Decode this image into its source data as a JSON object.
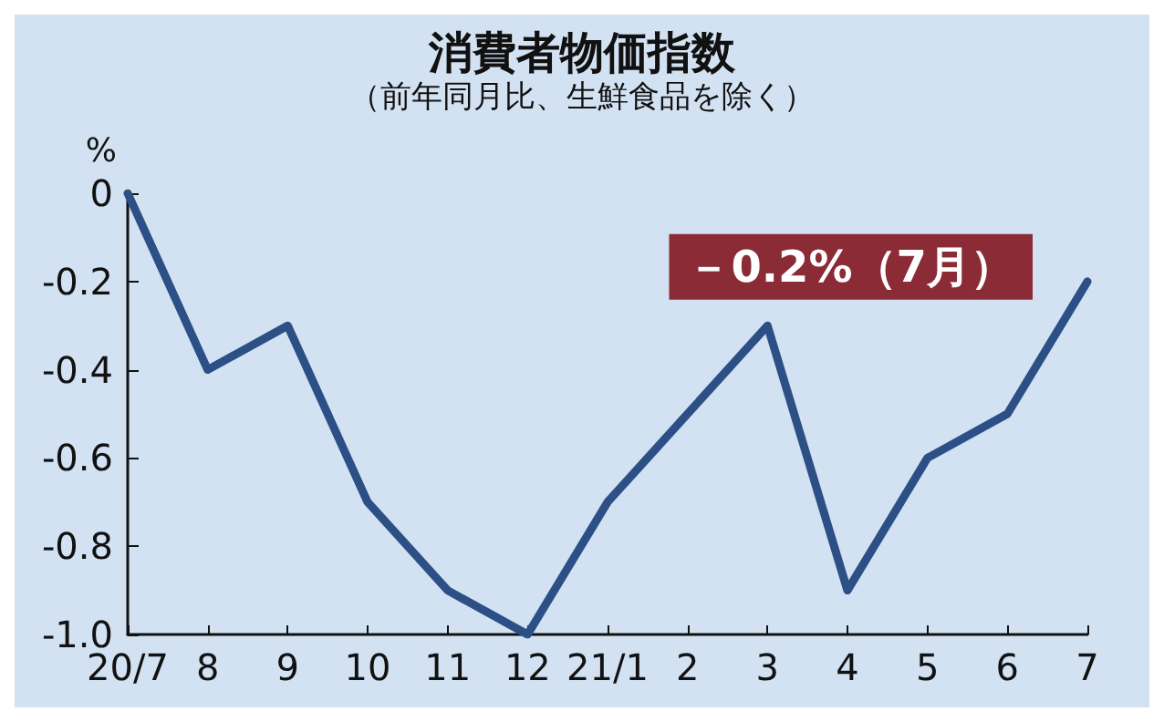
{
  "chart_data": {
    "type": "line",
    "title": "消費者物価指数",
    "subtitle": "（前年同月比、生鮮食品を除く）",
    "ylabel": "%",
    "categories": [
      "20/7",
      "8",
      "9",
      "10",
      "11",
      "12",
      "21/1",
      "2",
      "3",
      "4",
      "5",
      "6",
      "7"
    ],
    "series": [
      {
        "color": "#2c4f86",
        "values": [
          0,
          -0.4,
          -0.3,
          -0.7,
          -0.9,
          -1.0,
          -0.7,
          -0.5,
          -0.3,
          -0.9,
          -0.6,
          -0.5,
          -0.2
        ]
      }
    ],
    "ylim": [
      -1.0,
      0
    ],
    "yticks": [
      0,
      -0.2,
      -0.4,
      -0.6,
      -0.8,
      {
        "value": -1.0,
        "label": "-1.0"
      }
    ],
    "annotations": [
      {
        "text": "－0.2%（7月）",
        "x": "7",
        "y": -0.2
      }
    ],
    "grid": false,
    "marker": "none",
    "line_style": "solid"
  }
}
